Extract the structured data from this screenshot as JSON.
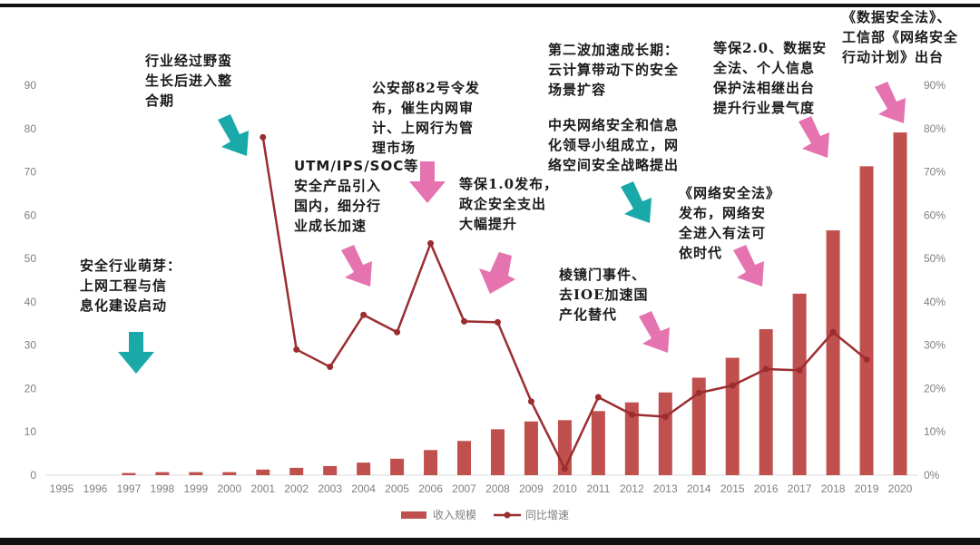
{
  "chart_data": {
    "type": "bar+line",
    "title": "",
    "categories": [
      "1995",
      "1996",
      "1997",
      "1998",
      "1999",
      "2000",
      "2001",
      "2002",
      "2003",
      "2004",
      "2005",
      "2006",
      "2007",
      "2008",
      "2009",
      "2010",
      "2011",
      "2012",
      "2013",
      "2014",
      "2015",
      "2016",
      "2017",
      "2018",
      "2019",
      "2020"
    ],
    "series": [
      {
        "name": "收入规模",
        "type": "bar",
        "axis": "left",
        "color": "#c0504d",
        "values": [
          0,
          0,
          0.5,
          0.7,
          0.7,
          0.7,
          1.3,
          1.7,
          2.1,
          2.9,
          3.8,
          5.8,
          7.9,
          10.6,
          12.4,
          12.7,
          14.8,
          16.8,
          19.1,
          22.5,
          27.1,
          33.7,
          41.9,
          56.5,
          71.3,
          79.1
        ]
      },
      {
        "name": "同比增速",
        "type": "line",
        "axis": "right",
        "color": "#9b2d30",
        "values": [
          null,
          null,
          null,
          null,
          null,
          null,
          78,
          29,
          25,
          37,
          33,
          53.5,
          35.5,
          35.3,
          17,
          1.5,
          18,
          14,
          13.5,
          19,
          20.7,
          24.5,
          24.2,
          33,
          26.7,
          null
        ]
      }
    ],
    "left_axis": {
      "ylim": [
        0,
        90
      ],
      "ticks": [
        "0",
        "10",
        "20",
        "30",
        "40",
        "50",
        "60",
        "70",
        "80",
        "90"
      ]
    },
    "right_axis": {
      "ylim": [
        0,
        90
      ],
      "ticks": [
        "0%",
        "10%",
        "20%",
        "30%",
        "40%",
        "50%",
        "60%",
        "70%",
        "80%",
        "90%"
      ]
    },
    "grid": false,
    "legend": {
      "position": "bottom",
      "entries": [
        "收入规模",
        "同比增速"
      ]
    },
    "annotations": [
      {
        "text": "安全行业萌芽：\n上网工程与信\n息化建设启动",
        "arrow_color": "teal"
      },
      {
        "text": "行业经过野蛮\n生长后进入整\n合期",
        "arrow_color": "teal"
      },
      {
        "text": "UTM/IPS/SOC等\n安全产品引入\n国内，细分行\n业成长加速",
        "arrow_color": "pink"
      },
      {
        "text": "公安部82号令发\n布，催生内网审\n计、上网行为管\n理市场",
        "arrow_color": "pink"
      },
      {
        "text": "等保1.0发布，\n政企安全支出\n大幅提升",
        "arrow_color": "pink"
      },
      {
        "text": "第二波加速成长期：\n云计算带动下的安全\n场景扩容",
        "arrow_color": "none"
      },
      {
        "text": "中央网络安全和信息\n化领导小组成立，网\n络空间安全战略提出",
        "arrow_color": "teal"
      },
      {
        "text": "棱镜门事件、\n去IOE加速国\n产化替代",
        "arrow_color": "pink"
      },
      {
        "text": "《网络安全法》\n发布，网络安\n全进入有法可\n依时代",
        "arrow_color": "pink"
      },
      {
        "text": "等保2.0、数据安\n全法、个人信息\n保护法相继出台\n提升行业景气度",
        "arrow_color": "pink"
      },
      {
        "text": "《数据安全法》、\n工信部《网络安全\n行动计划》出台",
        "arrow_color": "pink"
      }
    ]
  },
  "colors": {
    "bar": "#c0504d",
    "line": "#9b2d30",
    "arrow_teal": "#1aa9a9",
    "arrow_pink": "#e573b0",
    "tick": "#7f7f7f"
  }
}
